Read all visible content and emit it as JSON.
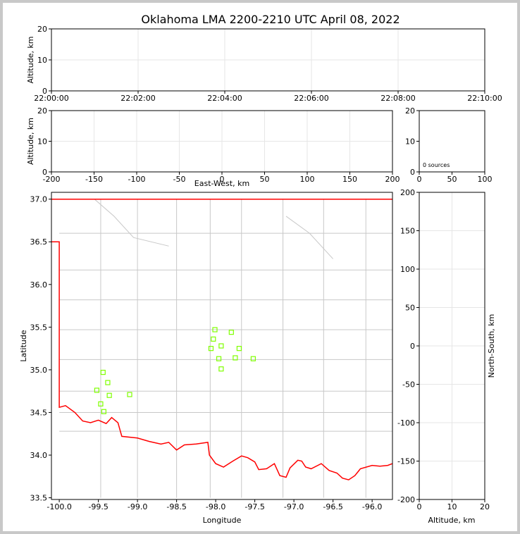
{
  "figure": {
    "title": "Oklahoma LMA 2200-2210 UTC April 08, 2022",
    "source_count_label": "0 sources"
  },
  "colors": {
    "state_border": "#ff0000",
    "county_lines": "#c8c8c8",
    "grid": "#e6e6e6",
    "source_marker": "#7fff00"
  },
  "chart_data": [
    {
      "type": "scatter",
      "name": "time-height",
      "xlabel": "",
      "ylabel": "Altitude, km",
      "xticks": [
        "22:00:00",
        "22:02:00",
        "22:04:00",
        "22:06:00",
        "22:08:00",
        "22:10:00"
      ],
      "xlim": [
        "22:00:00",
        "22:10:00"
      ],
      "ylim": [
        0,
        20
      ],
      "yticks": [
        0,
        10,
        20
      ],
      "grid": true,
      "points": []
    },
    {
      "type": "scatter",
      "name": "east-west-height",
      "xlabel": "East-West, km",
      "ylabel": "Altitude, km",
      "xlim": [
        -200,
        200
      ],
      "xticks": [
        -200,
        -150,
        -100,
        -50,
        0,
        50,
        100,
        150,
        200
      ],
      "ylim": [
        0,
        20
      ],
      "yticks": [
        0,
        10,
        20
      ],
      "grid": true,
      "points": []
    },
    {
      "type": "histogram",
      "name": "altitude-histogram",
      "xlabel": "",
      "ylabel": "",
      "xlim": [
        0,
        100
      ],
      "xticks": [
        0,
        50,
        100
      ],
      "ylim": [
        0,
        20
      ],
      "yticks": [
        0,
        10,
        20
      ],
      "annotation": "0 sources",
      "values": []
    },
    {
      "type": "scatter",
      "name": "plan-view",
      "xlabel": "Longitude",
      "ylabel": "Latitude",
      "xlim": [
        -100.1,
        -95.74
      ],
      "xticks": [
        -100.0,
        -99.5,
        -99.0,
        -98.5,
        -98.0,
        -97.5,
        -97.0,
        -96.5,
        -96.0
      ],
      "xticklabels": [
        "-100.0",
        "-99.5",
        "-99.0",
        "-98.5",
        "-98.0",
        "-97.5",
        "-97.0",
        "-96.5",
        "-96.0"
      ],
      "ylim": [
        33.48,
        37.08
      ],
      "yticks": [
        33.5,
        34.0,
        34.5,
        35.0,
        35.5,
        36.0,
        36.5,
        37.0
      ],
      "yticklabels": [
        "33.5",
        "34.0",
        "34.5",
        "35.0",
        "35.5",
        "36.0",
        "36.5",
        "37.0"
      ],
      "secondary_y": {
        "label": "North-South, km",
        "ticks": [
          -200,
          -150,
          -100,
          -50,
          0,
          50,
          100,
          150,
          200
        ]
      },
      "grid": false,
      "stations": [
        {
          "lon": -99.44,
          "lat": 34.97
        },
        {
          "lon": -99.38,
          "lat": 34.85
        },
        {
          "lon": -99.52,
          "lat": 34.76
        },
        {
          "lon": -99.36,
          "lat": 34.7
        },
        {
          "lon": -99.1,
          "lat": 34.71
        },
        {
          "lon": -99.47,
          "lat": 34.6
        },
        {
          "lon": -99.43,
          "lat": 34.51
        },
        {
          "lon": -98.01,
          "lat": 35.47
        },
        {
          "lon": -97.8,
          "lat": 35.44
        },
        {
          "lon": -98.03,
          "lat": 35.36
        },
        {
          "lon": -97.93,
          "lat": 35.28
        },
        {
          "lon": -98.06,
          "lat": 35.25
        },
        {
          "lon": -97.7,
          "lat": 35.25
        },
        {
          "lon": -97.96,
          "lat": 35.13
        },
        {
          "lon": -97.75,
          "lat": 35.14
        },
        {
          "lon": -97.52,
          "lat": 35.13
        },
        {
          "lon": -97.93,
          "lat": 35.01
        }
      ]
    },
    {
      "type": "scatter",
      "name": "height-north-south",
      "xlabel": "Altitude, km",
      "ylabel": "North-South, km",
      "xlim": [
        0,
        20
      ],
      "xticks": [
        0,
        10,
        20
      ],
      "ylim": [
        -200,
        200
      ],
      "yticks": [
        -200,
        -150,
        -100,
        -50,
        0,
        50,
        100,
        150,
        200
      ],
      "grid": true,
      "points": []
    }
  ]
}
